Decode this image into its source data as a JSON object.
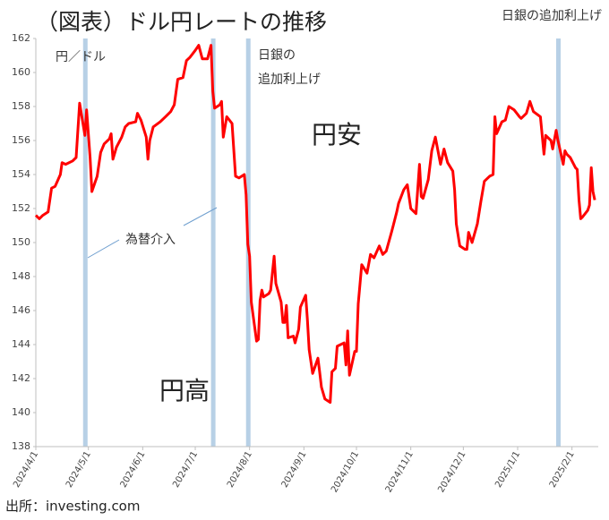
{
  "chart_data": {
    "type": "line",
    "title": "（図表）ドル円レートの推移",
    "y_axis_label": "円／ドル",
    "source": "出所：investing.com",
    "annotations": [
      "日銀の追加利上げ",
      "日銀の",
      "追加利上げ",
      "為替介入",
      "円安",
      "円高"
    ],
    "color": "#ff0000",
    "band_color": "#b7d0e6",
    "bands": [
      {
        "start": "2024/4/29",
        "end": "2024/4/30"
      },
      {
        "start": "2024/7/11",
        "end": "2024/7/12"
      },
      {
        "start": "2024/7/31",
        "end": "2024/7/31"
      },
      {
        "start": "2025/1/24",
        "end": "2025/1/24"
      }
    ],
    "x": [
      "2024/4/1",
      "2024/4/3",
      "2024/4/5",
      "2024/4/8",
      "2024/4/10",
      "2024/4/12",
      "2024/4/15",
      "2024/4/16",
      "2024/4/18",
      "2024/4/22",
      "2024/4/24",
      "2024/4/26",
      "2024/4/29",
      "2024/4/30",
      "2024/5/2",
      "2024/5/3",
      "2024/5/6",
      "2024/5/8",
      "2024/5/10",
      "2024/5/13",
      "2024/5/14",
      "2024/5/15",
      "2024/5/17",
      "2024/5/20",
      "2024/5/22",
      "2024/5/24",
      "2024/5/28",
      "2024/5/29",
      "2024/5/31",
      "2024/6/3",
      "2024/6/4",
      "2024/6/5",
      "2024/6/7",
      "2024/6/11",
      "2024/6/14",
      "2024/6/17",
      "2024/6/19",
      "2024/6/21",
      "2024/6/24",
      "2024/6/26",
      "2024/6/28",
      "2024/7/1",
      "2024/7/3",
      "2024/7/5",
      "2024/7/8",
      "2024/7/10",
      "2024/7/11",
      "2024/7/12",
      "2024/7/15",
      "2024/7/16",
      "2024/7/17",
      "2024/7/19",
      "2024/7/22",
      "2024/7/24",
      "2024/7/26",
      "2024/7/29",
      "2024/7/30",
      "2024/7/31",
      "2024/8/1",
      "2024/8/2",
      "2024/8/5",
      "2024/8/6",
      "2024/8/7",
      "2024/8/8",
      "2024/8/9",
      "2024/8/12",
      "2024/8/13",
      "2024/8/15",
      "2024/8/16",
      "2024/8/19",
      "2024/8/20",
      "2024/8/21",
      "2024/8/22",
      "2024/8/23",
      "2024/8/26",
      "2024/8/27",
      "2024/8/29",
      "2024/8/30",
      "2024/9/2",
      "2024/9/3",
      "2024/9/4",
      "2024/9/6",
      "2024/9/9",
      "2024/9/10",
      "2024/9/11",
      "2024/9/13",
      "2024/9/16",
      "2024/9/17",
      "2024/9/19",
      "2024/9/20",
      "2024/9/24",
      "2024/9/25",
      "2024/9/26",
      "2024/9/27",
      "2024/9/30",
      "2024/10/1",
      "2024/10/2",
      "2024/10/4",
      "2024/10/7",
      "2024/10/9",
      "2024/10/11",
      "2024/10/14",
      "2024/10/16",
      "2024/10/18",
      "2024/10/21",
      "2024/10/22",
      "2024/10/24",
      "2024/10/25",
      "2024/10/28",
      "2024/10/30",
      "2024/11/1",
      "2024/11/4",
      "2024/11/6",
      "2024/11/7",
      "2024/11/8",
      "2024/11/11",
      "2024/11/13",
      "2024/11/15",
      "2024/11/18",
      "2024/11/20",
      "2024/11/22",
      "2024/11/25",
      "2024/11/26",
      "2024/11/27",
      "2024/11/29",
      "2024/12/2",
      "2024/12/3",
      "2024/12/4",
      "2024/12/6",
      "2024/12/9",
      "2024/12/11",
      "2024/12/13",
      "2024/12/16",
      "2024/12/18",
      "2024/12/19",
      "2024/12/20",
      "2024/12/23",
      "2024/12/25",
      "2024/12/27",
      "2024/12/30",
      "2025/1/2",
      "2025/1/3",
      "2025/1/6",
      "2025/1/8",
      "2025/1/10",
      "2025/1/14",
      "2025/1/15",
      "2025/1/16",
      "2025/1/17",
      "2025/1/20",
      "2025/1/21",
      "2025/1/23",
      "2025/1/24",
      "2025/1/27",
      "2025/1/28",
      "2025/1/29",
      "2025/1/31",
      "2025/2/3",
      "2025/2/4",
      "2025/2/5",
      "2025/2/6",
      "2025/2/7",
      "2025/2/10",
      "2025/2/11",
      "2025/2/12",
      "2025/2/13",
      "2025/2/14"
    ],
    "values": [
      151.6,
      151.4,
      151.6,
      151.8,
      153.2,
      153.3,
      154.0,
      154.7,
      154.6,
      154.8,
      155.0,
      158.2,
      156.3,
      157.8,
      155.0,
      153.0,
      153.9,
      155.3,
      155.8,
      156.1,
      156.4,
      154.9,
      155.6,
      156.2,
      156.8,
      157.0,
      157.1,
      157.6,
      157.2,
      156.2,
      154.9,
      156.0,
      156.8,
      157.1,
      157.4,
      157.7,
      158.1,
      159.6,
      159.7,
      160.7,
      160.9,
      161.3,
      161.6,
      160.8,
      160.8,
      161.6,
      158.9,
      157.9,
      158.1,
      158.3,
      156.2,
      157.4,
      157.0,
      153.9,
      153.8,
      154.0,
      152.8,
      149.9,
      149.2,
      146.5,
      144.2,
      144.3,
      146.6,
      147.2,
      146.8,
      147.0,
      147.2,
      149.2,
      147.6,
      146.5,
      145.3,
      145.3,
      146.3,
      144.4,
      144.5,
      144.1,
      144.9,
      146.2,
      146.9,
      145.5,
      143.7,
      142.3,
      143.2,
      142.4,
      141.5,
      140.8,
      140.6,
      142.4,
      142.6,
      143.9,
      144.1,
      142.8,
      144.8,
      142.2,
      143.6,
      143.6,
      146.4,
      148.7,
      148.2,
      149.3,
      149.1,
      149.8,
      149.3,
      149.5,
      150.6,
      151.0,
      151.8,
      152.3,
      153.1,
      153.4,
      152.0,
      151.7,
      154.6,
      152.7,
      152.6,
      153.7,
      155.4,
      156.2,
      154.6,
      155.5,
      154.7,
      154.2,
      153.1,
      151.1,
      149.8,
      149.6,
      149.6,
      150.6,
      150.0,
      151.1,
      152.4,
      153.6,
      153.9,
      154.0,
      157.4,
      156.4,
      157.1,
      157.2,
      158.0,
      157.8,
      157.4,
      157.3,
      157.6,
      158.3,
      157.7,
      157.4,
      156.3,
      155.2,
      156.3,
      156.0,
      155.5,
      156.6,
      156.0,
      154.6,
      155.4,
      155.2,
      155.0,
      154.4,
      154.3,
      152.5,
      151.4,
      151.5,
      151.9,
      152.2,
      154.4,
      153.0,
      152.5
    ],
    "xlim": [
      "2024/4/1",
      "2025/2/16"
    ],
    "xticks": [
      "2024/4/1",
      "2024/5/1",
      "2024/6/1",
      "2024/7/1",
      "2024/8/1",
      "2024/9/1",
      "2024/10/1",
      "2024/11/1",
      "2024/12/1",
      "2025/1/1",
      "2025/2/1"
    ],
    "ylim": [
      138,
      162
    ],
    "yticks": [
      138,
      140,
      142,
      144,
      146,
      148,
      150,
      152,
      154,
      156,
      158,
      160,
      162
    ]
  }
}
